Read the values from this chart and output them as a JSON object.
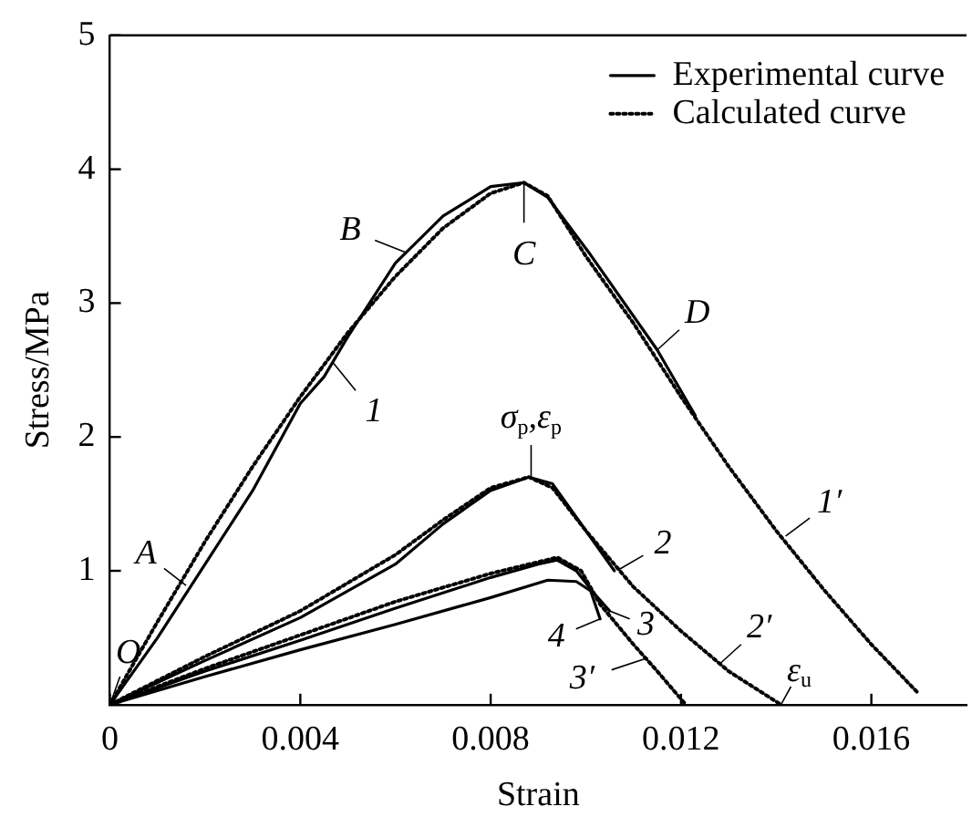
{
  "chart_data": {
    "type": "line",
    "xlabel": "Strain",
    "ylabel": "Stress/MPa",
    "xlim": [
      0,
      0.018
    ],
    "xticks": [
      0,
      0.004,
      0.008,
      0.012,
      0.016
    ],
    "ylim": [
      0,
      5
    ],
    "yticks": [
      {
        "value": 0,
        "label": null
      },
      1,
      2,
      3,
      4,
      5
    ],
    "grid": false,
    "legend": "top right",
    "marker": "none",
    "series": [
      {
        "name": "Experimental curve",
        "color": "#000000",
        "line_style": "solid",
        "x": [
          0,
          0.001,
          0.002,
          0.003,
          0.004,
          0.0045,
          0.005,
          0.006,
          0.007,
          0.008,
          0.0087,
          0.0092,
          0.0101,
          0.0115,
          0.0123
        ],
        "values": [
          0,
          0.5,
          1.05,
          1.6,
          2.25,
          2.45,
          2.75,
          3.3,
          3.65,
          3.87,
          3.9,
          3.79,
          3.36,
          2.65,
          2.16
        ]
      },
      {
        "name": "Calculated curve",
        "color": "#000000",
        "line_style": "dotted",
        "x": [
          0,
          0.001,
          0.002,
          0.003,
          0.004,
          0.005,
          0.006,
          0.007,
          0.008,
          0.0087,
          0.0092,
          0.01,
          0.011,
          0.012,
          0.013,
          0.014,
          0.015,
          0.016,
          0.017
        ],
        "values": [
          0,
          0.62,
          1.22,
          1.78,
          2.3,
          2.78,
          3.2,
          3.56,
          3.82,
          3.9,
          3.8,
          3.35,
          2.85,
          2.3,
          1.78,
          1.3,
          0.86,
          0.45,
          0.08
        ]
      },
      {
        "color": "#000000",
        "line_style": "solid",
        "x": [
          0,
          0.002,
          0.004,
          0.006,
          0.007,
          0.008,
          0.0088,
          0.0093,
          0.0098,
          0.0106
        ],
        "values": [
          0,
          0.33,
          0.65,
          1.05,
          1.35,
          1.6,
          1.7,
          1.65,
          1.4,
          1.0
        ]
      },
      {
        "color": "#000000",
        "line_style": "dotted",
        "x": [
          0,
          0.002,
          0.004,
          0.006,
          0.007,
          0.008,
          0.0088,
          0.0093,
          0.01,
          0.011,
          0.012,
          0.013,
          0.0141
        ],
        "values": [
          0,
          0.36,
          0.7,
          1.12,
          1.38,
          1.62,
          1.7,
          1.62,
          1.3,
          0.88,
          0.55,
          0.25,
          0
        ]
      },
      {
        "color": "#000000",
        "line_style": "solid",
        "x": [
          0,
          0.002,
          0.004,
          0.006,
          0.008,
          0.009,
          0.0094,
          0.0098,
          0.0102,
          0.0105
        ],
        "values": [
          0,
          0.25,
          0.48,
          0.72,
          0.95,
          1.05,
          1.08,
          1.0,
          0.82,
          0.7
        ]
      },
      {
        "color": "#000000",
        "line_style": "dotted",
        "x": [
          0,
          0.002,
          0.004,
          0.006,
          0.008,
          0.0094,
          0.0099,
          0.0103,
          0.011,
          0.0115,
          0.0121
        ],
        "values": [
          0,
          0.27,
          0.52,
          0.77,
          0.98,
          1.1,
          1.0,
          0.75,
          0.45,
          0.25,
          0
        ]
      },
      {
        "color": "#000000",
        "line_style": "solid",
        "x": [
          0,
          0.002,
          0.004,
          0.006,
          0.008,
          0.0092,
          0.0098,
          0.0101,
          0.0103
        ],
        "values": [
          0,
          0.21,
          0.41,
          0.6,
          0.8,
          0.93,
          0.92,
          0.85,
          0.64
        ]
      }
    ],
    "annotations": [
      {
        "text": "O",
        "x": 0,
        "y": 0
      },
      {
        "text": "A",
        "x": 0.0016,
        "y": 0.89
      },
      {
        "text": "B",
        "x": 0.0062,
        "y": 3.38
      },
      {
        "text": "C",
        "x": 0.0087,
        "y": 3.9
      },
      {
        "text": "D",
        "x": 0.0115,
        "y": 2.65
      },
      {
        "text": "1",
        "x": 0.0047,
        "y": 2.55
      },
      {
        "text": "σ$_{p}$,ε$_{p}$",
        "x": 0.00885,
        "y": 1.7
      },
      {
        "text": "2",
        "x": 0.0107,
        "y": 1.01
      },
      {
        "text": "3",
        "x": 0.0105,
        "y": 0.7
      },
      {
        "text": "4",
        "x": 0.0103,
        "y": 0.64
      },
      {
        "text": "3′",
        "x": 0.0113,
        "y": 0.35
      },
      {
        "text": "2′",
        "x": 0.0128,
        "y": 0.3
      },
      {
        "text": "1′",
        "x": 0.0142,
        "y": 1.26
      },
      {
        "text": "ε$_{u}$",
        "x": 0.0141,
        "y": 0
      }
    ]
  }
}
